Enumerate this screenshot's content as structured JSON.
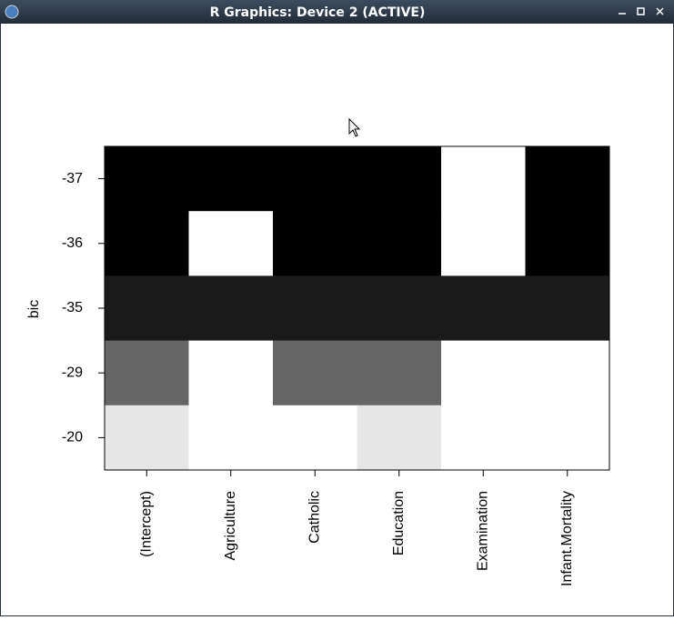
{
  "window": {
    "title": "R Graphics: Device 2 (ACTIVE)"
  },
  "chart_data": {
    "type": "heatmap",
    "ylabel": "bic",
    "categories": [
      "(Intercept)",
      "Agriculture",
      "Catholic",
      "Education",
      "Examination",
      "Infant.Mortality"
    ],
    "rows": [
      {
        "label": "-37",
        "color": "#000000",
        "included": [
          1,
          1,
          1,
          1,
          0,
          1
        ]
      },
      {
        "label": "-36",
        "color": "#000000",
        "included": [
          1,
          0,
          1,
          1,
          0,
          1
        ]
      },
      {
        "label": "-35",
        "color": "#1a1a1a",
        "included": [
          1,
          1,
          1,
          1,
          1,
          1
        ]
      },
      {
        "label": "-29",
        "color": "#666666",
        "included": [
          1,
          0,
          1,
          1,
          0,
          0
        ]
      },
      {
        "label": "-20",
        "color": "#e6e6e6",
        "included": [
          1,
          0,
          0,
          1,
          0,
          0
        ]
      }
    ]
  }
}
